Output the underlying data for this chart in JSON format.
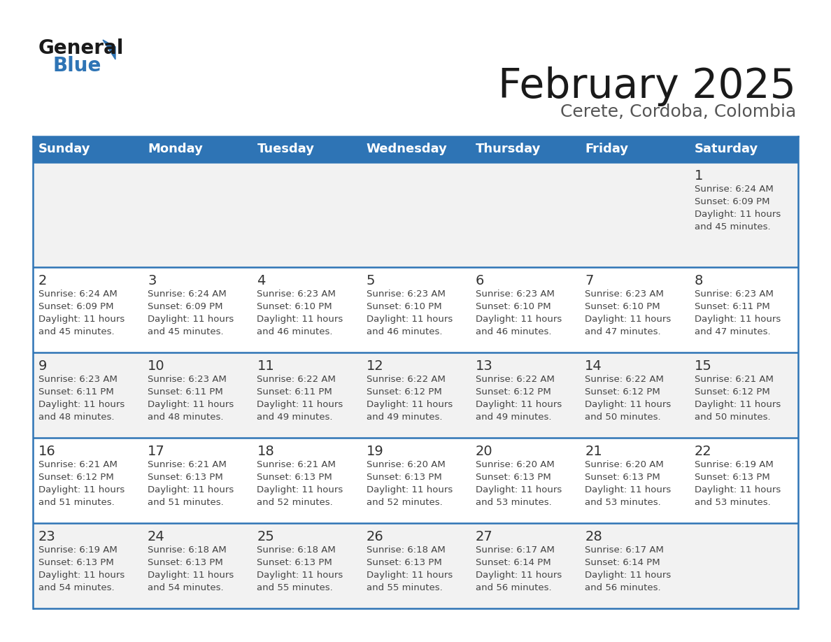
{
  "title": "February 2025",
  "subtitle": "Cerete, Cordoba, Colombia",
  "header_bg": "#2E74B5",
  "header_text_color": "#FFFFFF",
  "day_names": [
    "Sunday",
    "Monday",
    "Tuesday",
    "Wednesday",
    "Thursday",
    "Friday",
    "Saturday"
  ],
  "cell_bg_even": "#F2F2F2",
  "cell_bg_odd": "#FFFFFF",
  "cell_text_color": "#444444",
  "day_num_color": "#333333",
  "border_color": "#2E74B5",
  "logo_color1": "#1A1A1A",
  "logo_color2": "#2E74B5",
  "calendar_data": [
    [
      null,
      null,
      null,
      null,
      null,
      null,
      {
        "day": 1,
        "sunrise": "6:24 AM",
        "sunset": "6:09 PM",
        "daylight_h": "11 hours",
        "daylight_m": "45 minutes."
      }
    ],
    [
      {
        "day": 2,
        "sunrise": "6:24 AM",
        "sunset": "6:09 PM",
        "daylight_h": "11 hours",
        "daylight_m": "45 minutes."
      },
      {
        "day": 3,
        "sunrise": "6:24 AM",
        "sunset": "6:09 PM",
        "daylight_h": "11 hours",
        "daylight_m": "45 minutes."
      },
      {
        "day": 4,
        "sunrise": "6:23 AM",
        "sunset": "6:10 PM",
        "daylight_h": "11 hours",
        "daylight_m": "46 minutes."
      },
      {
        "day": 5,
        "sunrise": "6:23 AM",
        "sunset": "6:10 PM",
        "daylight_h": "11 hours",
        "daylight_m": "46 minutes."
      },
      {
        "day": 6,
        "sunrise": "6:23 AM",
        "sunset": "6:10 PM",
        "daylight_h": "11 hours",
        "daylight_m": "46 minutes."
      },
      {
        "day": 7,
        "sunrise": "6:23 AM",
        "sunset": "6:10 PM",
        "daylight_h": "11 hours",
        "daylight_m": "47 minutes."
      },
      {
        "day": 8,
        "sunrise": "6:23 AM",
        "sunset": "6:11 PM",
        "daylight_h": "11 hours",
        "daylight_m": "47 minutes."
      }
    ],
    [
      {
        "day": 9,
        "sunrise": "6:23 AM",
        "sunset": "6:11 PM",
        "daylight_h": "11 hours",
        "daylight_m": "48 minutes."
      },
      {
        "day": 10,
        "sunrise": "6:23 AM",
        "sunset": "6:11 PM",
        "daylight_h": "11 hours",
        "daylight_m": "48 minutes."
      },
      {
        "day": 11,
        "sunrise": "6:22 AM",
        "sunset": "6:11 PM",
        "daylight_h": "11 hours",
        "daylight_m": "49 minutes."
      },
      {
        "day": 12,
        "sunrise": "6:22 AM",
        "sunset": "6:12 PM",
        "daylight_h": "11 hours",
        "daylight_m": "49 minutes."
      },
      {
        "day": 13,
        "sunrise": "6:22 AM",
        "sunset": "6:12 PM",
        "daylight_h": "11 hours",
        "daylight_m": "49 minutes."
      },
      {
        "day": 14,
        "sunrise": "6:22 AM",
        "sunset": "6:12 PM",
        "daylight_h": "11 hours",
        "daylight_m": "50 minutes."
      },
      {
        "day": 15,
        "sunrise": "6:21 AM",
        "sunset": "6:12 PM",
        "daylight_h": "11 hours",
        "daylight_m": "50 minutes."
      }
    ],
    [
      {
        "day": 16,
        "sunrise": "6:21 AM",
        "sunset": "6:12 PM",
        "daylight_h": "11 hours",
        "daylight_m": "51 minutes."
      },
      {
        "day": 17,
        "sunrise": "6:21 AM",
        "sunset": "6:13 PM",
        "daylight_h": "11 hours",
        "daylight_m": "51 minutes."
      },
      {
        "day": 18,
        "sunrise": "6:21 AM",
        "sunset": "6:13 PM",
        "daylight_h": "11 hours",
        "daylight_m": "52 minutes."
      },
      {
        "day": 19,
        "sunrise": "6:20 AM",
        "sunset": "6:13 PM",
        "daylight_h": "11 hours",
        "daylight_m": "52 minutes."
      },
      {
        "day": 20,
        "sunrise": "6:20 AM",
        "sunset": "6:13 PM",
        "daylight_h": "11 hours",
        "daylight_m": "53 minutes."
      },
      {
        "day": 21,
        "sunrise": "6:20 AM",
        "sunset": "6:13 PM",
        "daylight_h": "11 hours",
        "daylight_m": "53 minutes."
      },
      {
        "day": 22,
        "sunrise": "6:19 AM",
        "sunset": "6:13 PM",
        "daylight_h": "11 hours",
        "daylight_m": "53 minutes."
      }
    ],
    [
      {
        "day": 23,
        "sunrise": "6:19 AM",
        "sunset": "6:13 PM",
        "daylight_h": "11 hours",
        "daylight_m": "54 minutes."
      },
      {
        "day": 24,
        "sunrise": "6:18 AM",
        "sunset": "6:13 PM",
        "daylight_h": "11 hours",
        "daylight_m": "54 minutes."
      },
      {
        "day": 25,
        "sunrise": "6:18 AM",
        "sunset": "6:13 PM",
        "daylight_h": "11 hours",
        "daylight_m": "55 minutes."
      },
      {
        "day": 26,
        "sunrise": "6:18 AM",
        "sunset": "6:13 PM",
        "daylight_h": "11 hours",
        "daylight_m": "55 minutes."
      },
      {
        "day": 27,
        "sunrise": "6:17 AM",
        "sunset": "6:14 PM",
        "daylight_h": "11 hours",
        "daylight_m": "56 minutes."
      },
      {
        "day": 28,
        "sunrise": "6:17 AM",
        "sunset": "6:14 PM",
        "daylight_h": "11 hours",
        "daylight_m": "56 minutes."
      },
      null
    ]
  ]
}
